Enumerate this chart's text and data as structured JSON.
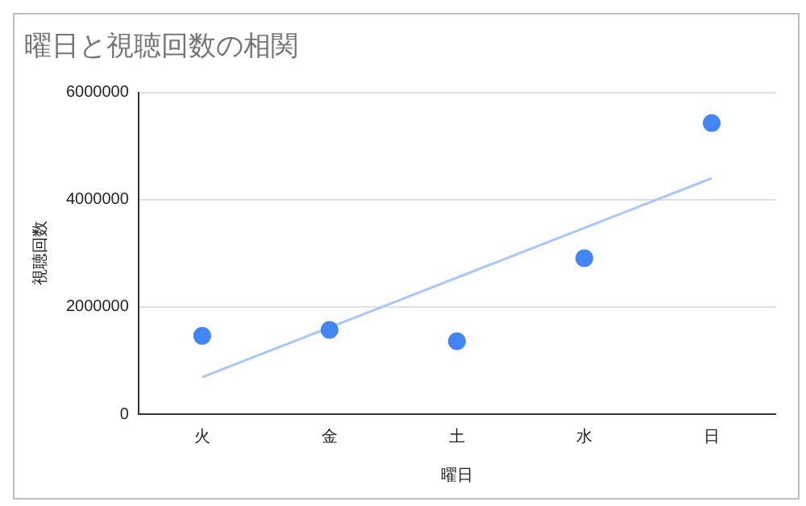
{
  "chart_data": {
    "type": "scatter",
    "title": "曜日と視聴回数の相関",
    "xlabel": "曜日",
    "ylabel": "視聴回数",
    "categories": [
      "火",
      "金",
      "土",
      "水",
      "日"
    ],
    "series": [
      {
        "color": "#4285f4",
        "values": [
          1460000,
          1570000,
          1360000,
          2910000,
          5430000
        ]
      },
      {
        "type": "line",
        "marker": "none",
        "color": "#a8c7fa",
        "x": [
          "火",
          "日"
        ],
        "values": [
          690000,
          4400000
        ]
      }
    ],
    "ylim": [
      0,
      6000000
    ],
    "yticks": [
      0,
      2000000,
      4000000,
      6000000
    ],
    "grid": "y",
    "legend": false,
    "marker": "circle"
  }
}
